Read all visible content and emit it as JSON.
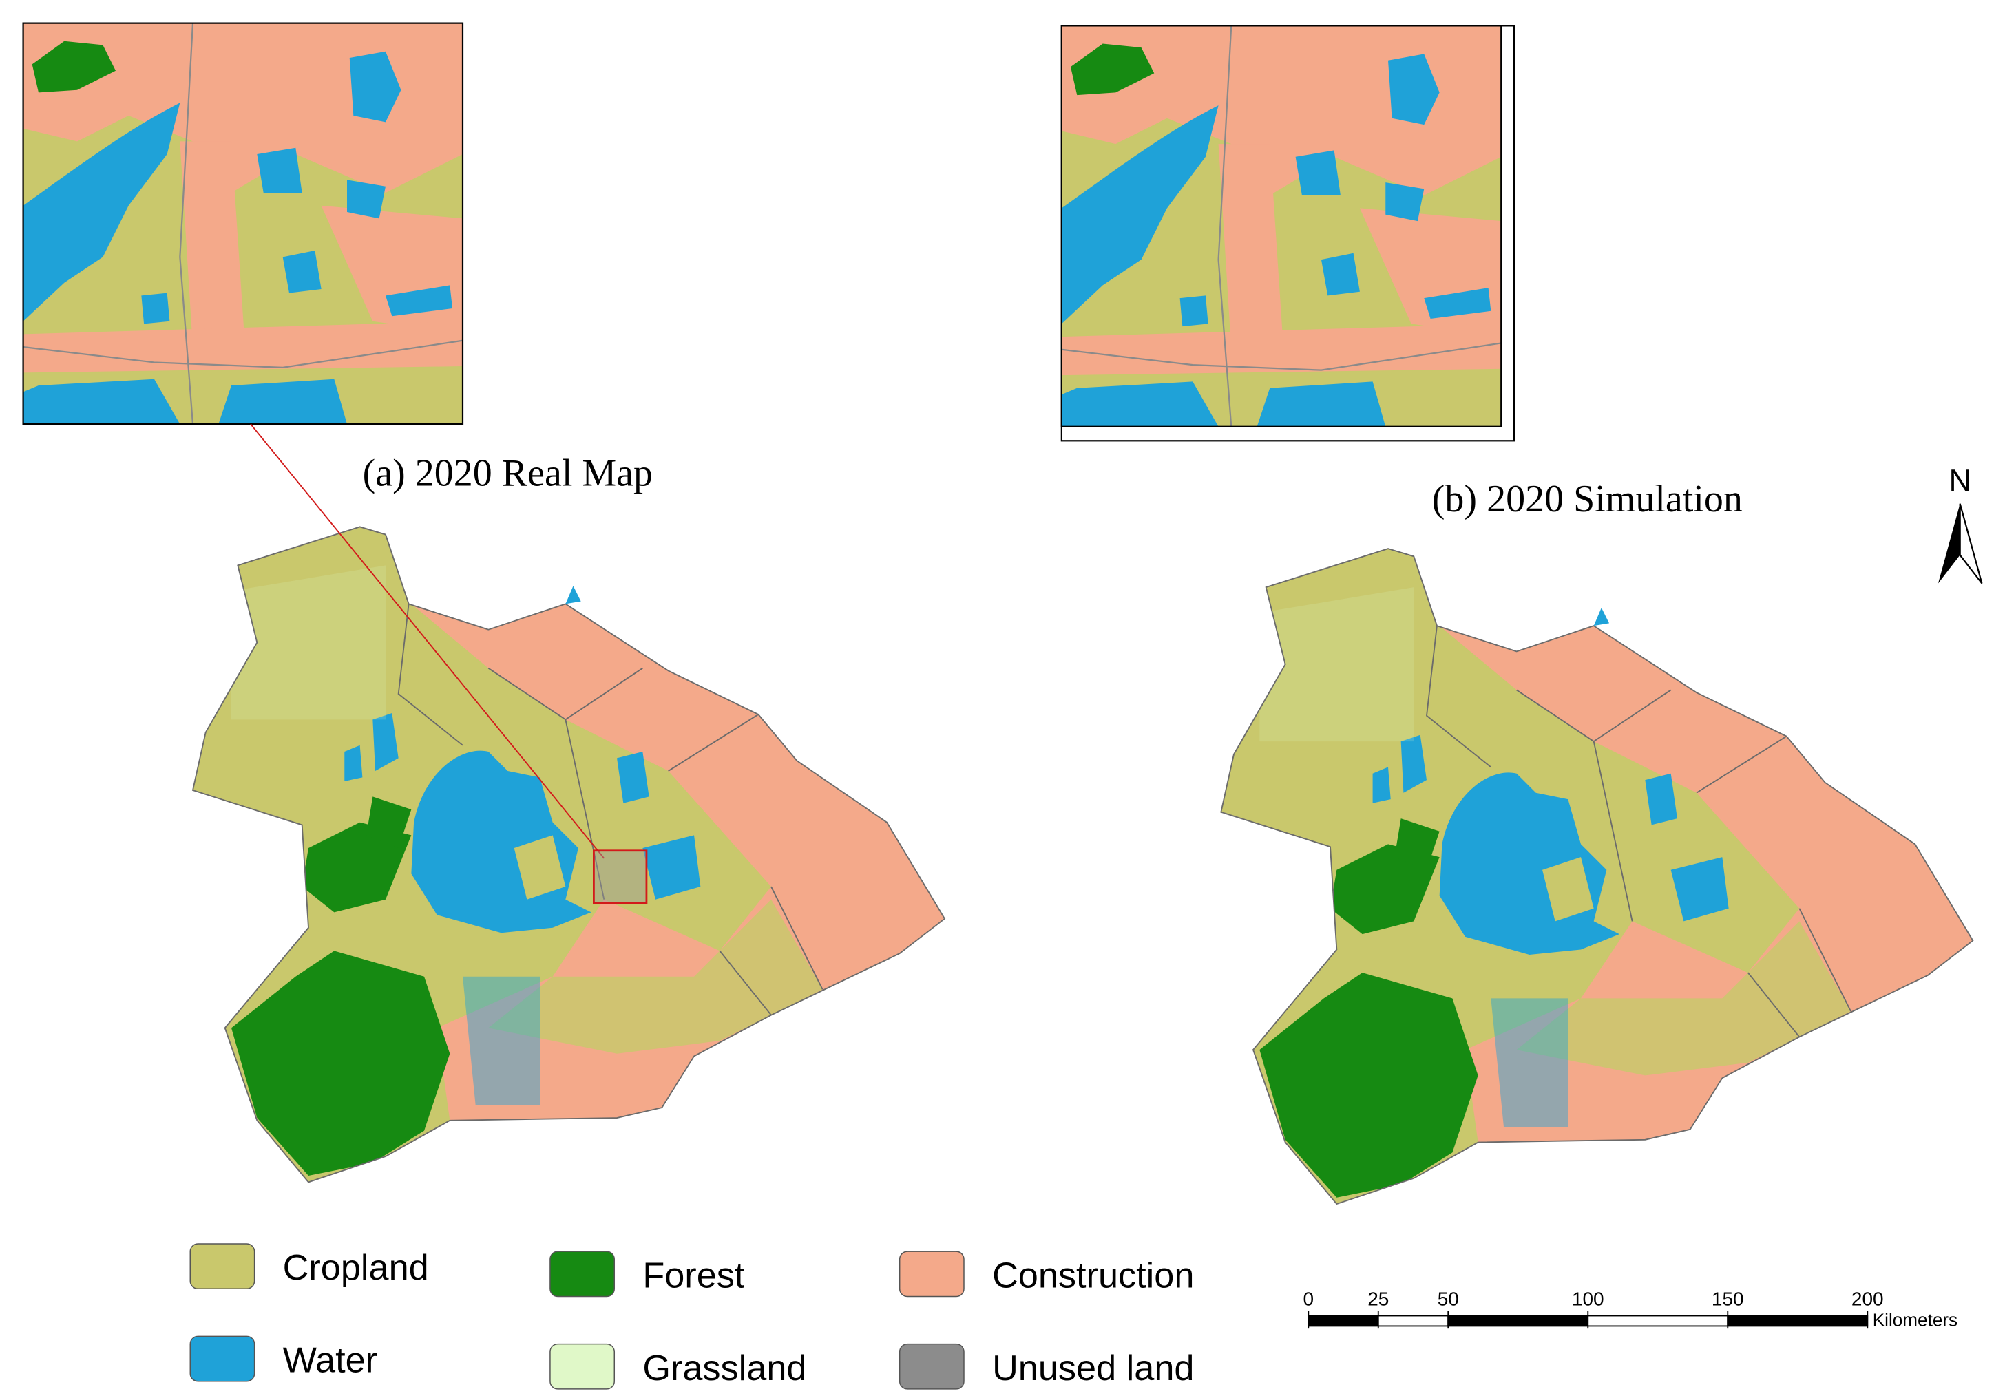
{
  "panels": [
    {
      "title": "(a)  2020 Real Map"
    },
    {
      "title": "(b)  2020 Simulation"
    }
  ],
  "north": "N",
  "legend": [
    {
      "label": "Cropland",
      "color": "#c9c86c"
    },
    {
      "label": "Water",
      "color": "#1fa2d8"
    },
    {
      "label": "Forest",
      "color": "#168a12"
    },
    {
      "label": "Grassland",
      "color": "#e0f8c8"
    },
    {
      "label": "Construction",
      "color": "#f4a98a"
    },
    {
      "label": "Unused land",
      "color": "#8c8c8c"
    }
  ],
  "scale_bar": {
    "ticks": [
      0,
      25,
      50,
      100,
      150,
      200
    ],
    "unit": "Kilometers"
  }
}
